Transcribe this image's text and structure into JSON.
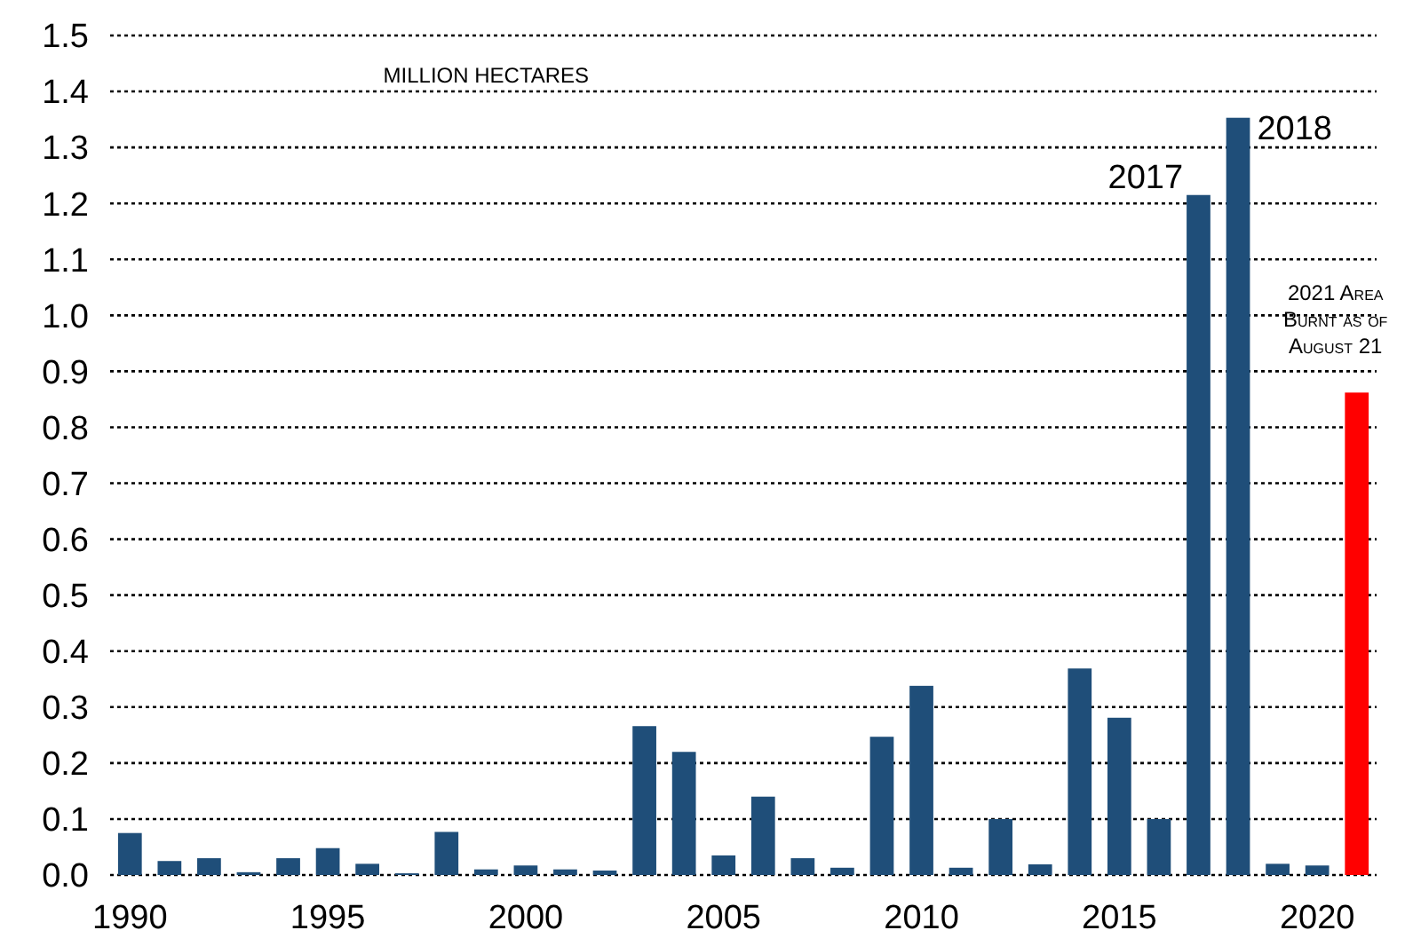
{
  "chart_data": {
    "type": "bar",
    "ylabel": "MILLION HECTARES",
    "x": [
      1990,
      1991,
      1992,
      1993,
      1994,
      1995,
      1996,
      1997,
      1998,
      1999,
      2000,
      2001,
      2002,
      2003,
      2004,
      2005,
      2006,
      2007,
      2008,
      2009,
      2010,
      2011,
      2012,
      2013,
      2014,
      2015,
      2016,
      2017,
      2018,
      2019,
      2020,
      2021
    ],
    "values": [
      0.075,
      0.025,
      0.03,
      0.005,
      0.03,
      0.048,
      0.02,
      0.003,
      0.077,
      0.01,
      0.017,
      0.01,
      0.008,
      0.266,
      0.22,
      0.035,
      0.14,
      0.03,
      0.013,
      0.247,
      0.338,
      0.013,
      0.1,
      0.019,
      0.369,
      0.281,
      0.1,
      1.215,
      1.353,
      0.02,
      0.017,
      0.862
    ],
    "colors": [
      "#1f4e79",
      "#1f4e79",
      "#1f4e79",
      "#1f4e79",
      "#1f4e79",
      "#1f4e79",
      "#1f4e79",
      "#1f4e79",
      "#1f4e79",
      "#1f4e79",
      "#1f4e79",
      "#1f4e79",
      "#1f4e79",
      "#1f4e79",
      "#1f4e79",
      "#1f4e79",
      "#1f4e79",
      "#1f4e79",
      "#1f4e79",
      "#1f4e79",
      "#1f4e79",
      "#1f4e79",
      "#1f4e79",
      "#1f4e79",
      "#1f4e79",
      "#1f4e79",
      "#1f4e79",
      "#1f4e79",
      "#1f4e79",
      "#1f4e79",
      "#1f4e79",
      "#ff0000"
    ],
    "xlim": [
      1989.5,
      2021.5
    ],
    "xticks": [
      1990,
      1995,
      2000,
      2005,
      2010,
      2015,
      2020
    ],
    "ylim": [
      0,
      1.5
    ],
    "yticks": [
      {
        "value": 0,
        "label": "0.0"
      },
      0.1,
      0.2,
      0.3,
      0.4,
      0.5,
      0.6,
      0.7,
      0.8,
      0.9,
      {
        "value": 1,
        "label": "1.0"
      },
      1.1,
      1.2,
      1.3,
      1.4,
      1.5
    ],
    "grid": "y",
    "line_style": "dotted",
    "annotations": [
      {
        "text": "2017",
        "x": 2017,
        "y": 1.215
      },
      {
        "text": "2018",
        "x": 2018,
        "y": 1.353
      },
      {
        "text": "2021 Area Burnt as of August 21",
        "x": 2021,
        "y": 0.862
      }
    ]
  }
}
